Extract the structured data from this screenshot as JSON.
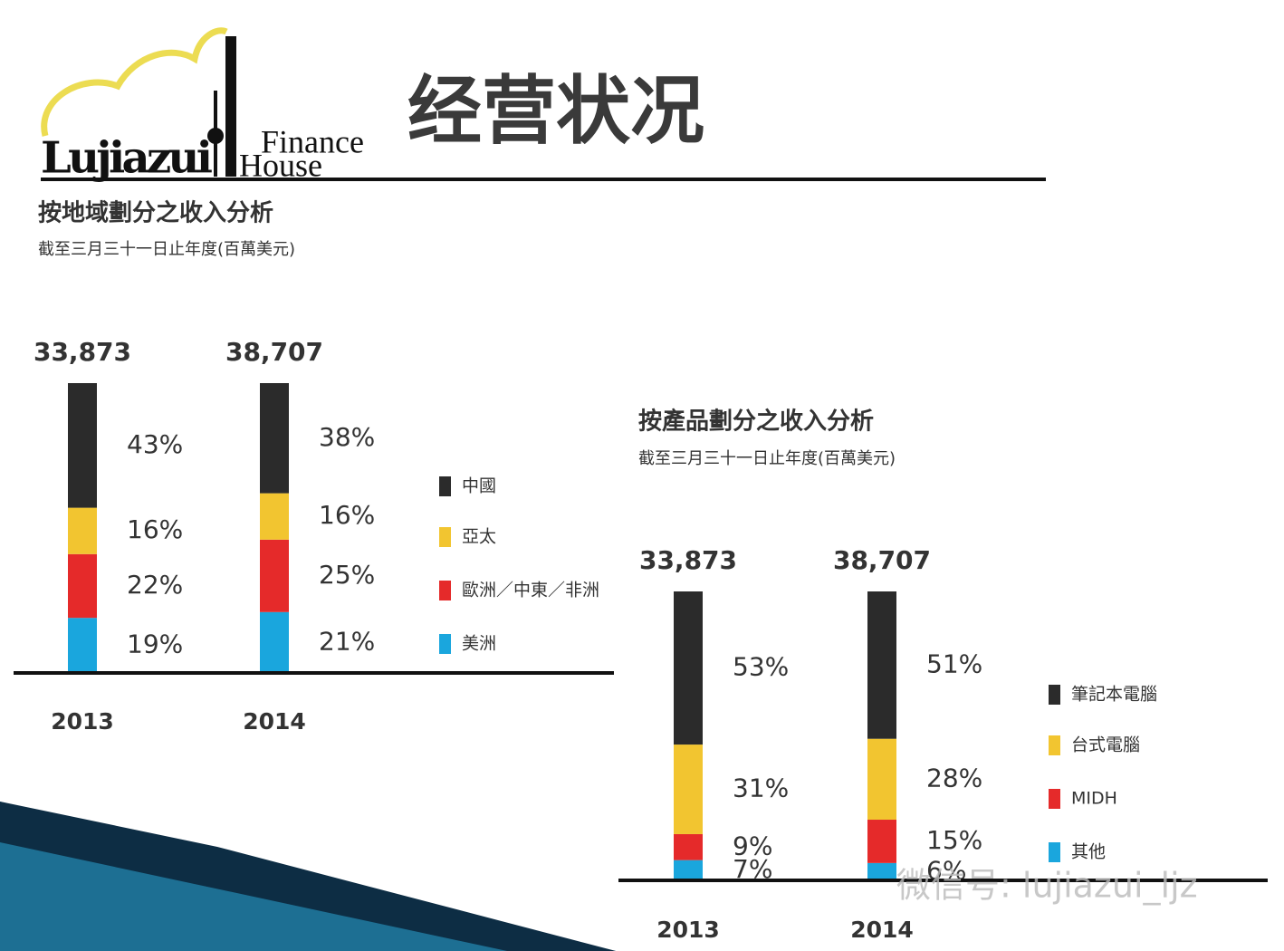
{
  "header": {
    "title": "经营状况",
    "logo": [
      "Lujiazui",
      "Finance",
      "House"
    ],
    "watermark": "微信号: lujiazui_ljz"
  },
  "chart_data": [
    {
      "type": "bar",
      "stacked": true,
      "title": "按地域劃分之收入分析",
      "subtitle": "截至三月三十一日止年度(百萬美元)",
      "categories": [
        "2013",
        "2014"
      ],
      "totals": [
        {
          "value": 33873,
          "label": "33,873"
        },
        {
          "value": 38707,
          "label": "38,707"
        }
      ],
      "series": [
        {
          "name": "中國",
          "color": "#2b2b2b",
          "values": [
            43,
            38
          ],
          "value_labels": [
            "43%",
            "38%"
          ]
        },
        {
          "name": "亞太",
          "color": "#f2c530",
          "values": [
            16,
            16
          ],
          "value_labels": [
            "16%",
            "16%"
          ]
        },
        {
          "name": "歐洲／中東／非洲",
          "color": "#e52a2a",
          "values": [
            22,
            25
          ],
          "value_labels": [
            "22%",
            "25%"
          ]
        },
        {
          "name": "美洲",
          "color": "#1aa6dd",
          "values": [
            19,
            21
          ],
          "value_labels": [
            "19%",
            "21%"
          ]
        }
      ]
    },
    {
      "type": "bar",
      "stacked": true,
      "title": "按產品劃分之收入分析",
      "subtitle": "截至三月三十一日止年度(百萬美元)",
      "categories": [
        "2013",
        "2014"
      ],
      "totals": [
        {
          "value": 33873,
          "label": "33,873"
        },
        {
          "value": 38707,
          "label": "38,707"
        }
      ],
      "series": [
        {
          "name": "筆記本電腦",
          "color": "#2b2b2b",
          "values": [
            53,
            51
          ],
          "value_labels": [
            "53%",
            "51%"
          ]
        },
        {
          "name": "台式電腦",
          "color": "#f2c530",
          "values": [
            31,
            28
          ],
          "value_labels": [
            "31%",
            "28%"
          ]
        },
        {
          "name": "MIDH",
          "color": "#e52a2a",
          "values": [
            9,
            15
          ],
          "value_labels": [
            "9%",
            "15%"
          ]
        },
        {
          "name": "其他",
          "color": "#1aa6dd",
          "values": [
            7,
            6
          ],
          "value_labels": [
            "7%",
            "6%"
          ]
        }
      ]
    }
  ]
}
